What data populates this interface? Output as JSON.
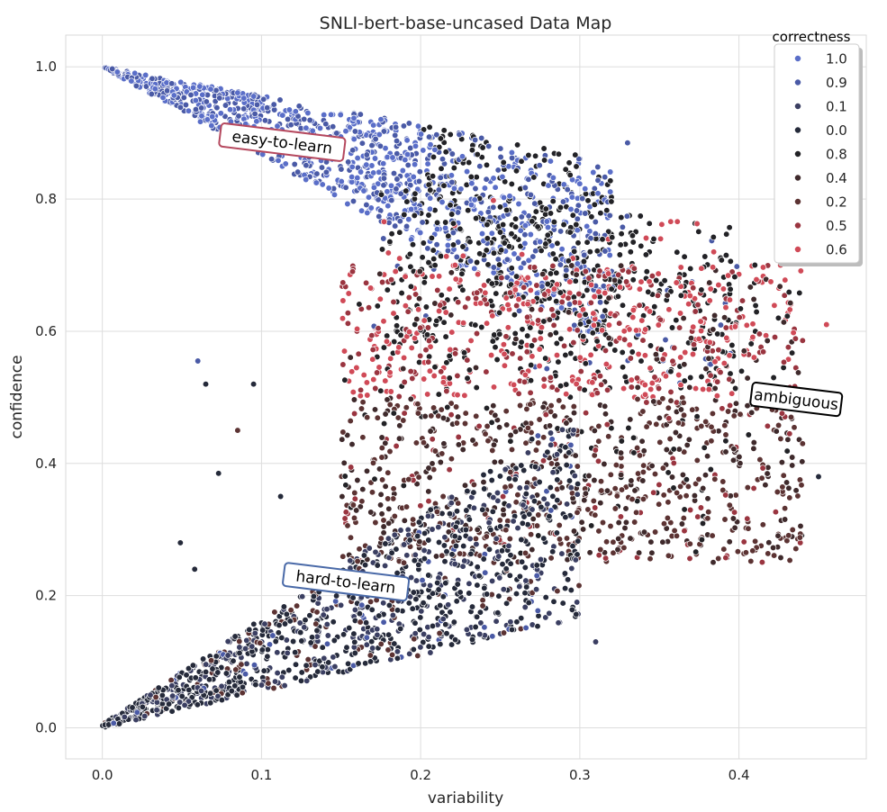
{
  "chart_data": {
    "type": "scatter",
    "title": "SNLI-bert-base-uncased Data Map",
    "xlabel": "variability",
    "ylabel": "confidence",
    "xlim": [
      -0.023,
      0.48
    ],
    "ylim": [
      -0.047,
      1.048
    ],
    "xticks": [
      0.0,
      0.1,
      0.2,
      0.3,
      0.4
    ],
    "yticks": [
      0.0,
      0.2,
      0.4,
      0.6,
      0.8,
      1.0
    ],
    "xtick_labels": [
      "0.0",
      "0.1",
      "0.2",
      "0.3",
      "0.4"
    ],
    "ytick_labels": [
      "0.0",
      "0.2",
      "0.4",
      "0.6",
      "0.8",
      "1.0"
    ],
    "grid": true,
    "legend": {
      "title": "correctness",
      "placement": "top-right",
      "entries": [
        {
          "label": "1.0",
          "color": "#5a6ec8"
        },
        {
          "label": "0.9",
          "color": "#4a5aa6"
        },
        {
          "label": "0.1",
          "color": "#3b3f62"
        },
        {
          "label": "0.0",
          "color": "#252a3a"
        },
        {
          "label": "0.8",
          "color": "#222226"
        },
        {
          "label": "0.4",
          "color": "#3f2a2c"
        },
        {
          "label": "0.2",
          "color": "#5c3333"
        },
        {
          "label": "0.5",
          "color": "#9a3540"
        },
        {
          "label": "0.6",
          "color": "#d04a57"
        }
      ]
    },
    "annotations": [
      {
        "text": "easy-to-learn",
        "x": 0.113,
        "y": 0.886,
        "rotation": 7,
        "edge_color": "#b5485e"
      },
      {
        "text": "hard-to-learn",
        "x": 0.153,
        "y": 0.221,
        "rotation": 7,
        "edge_color": "#4a6aa8"
      },
      {
        "text": "ambiguous",
        "x": 0.436,
        "y": 0.497,
        "rotation": 7,
        "edge_color": "#000000"
      }
    ],
    "points_sampled_from_regions": true
  }
}
